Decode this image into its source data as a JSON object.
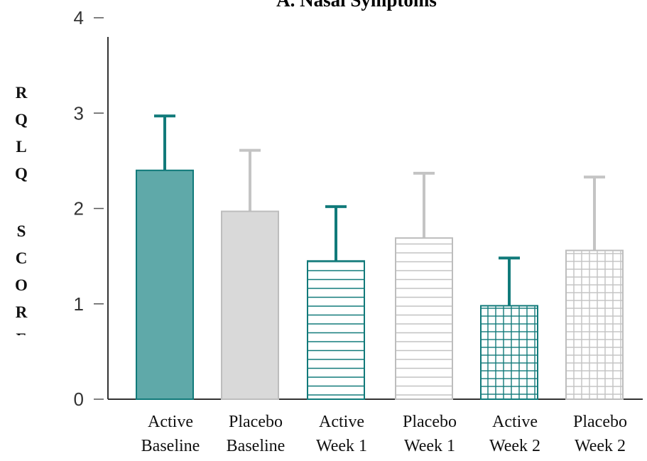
{
  "chart_data": {
    "type": "bar",
    "title": "A. Nasal Symptoms",
    "ylabel": "RQLQ SCORE",
    "xlabel": "",
    "ylim": [
      0,
      4
    ],
    "yticks": [
      "0",
      "1",
      "2",
      "3",
      "4"
    ],
    "categories": [
      [
        "Active",
        "Baseline"
      ],
      [
        "Placebo",
        "Baseline"
      ],
      [
        "Active",
        "Week 1"
      ],
      [
        "Placebo",
        "Week 1"
      ],
      [
        "Active",
        "Week 2"
      ],
      [
        "Placebo",
        "Week 2"
      ]
    ],
    "values": [
      2.4,
      1.97,
      1.45,
      1.69,
      0.98,
      1.56
    ],
    "error_upper": [
      2.97,
      2.61,
      2.02,
      2.37,
      1.48,
      2.33
    ],
    "fills": [
      "solid",
      "solid",
      "horizontal-lines",
      "horizontal-lines",
      "grid",
      "grid"
    ],
    "colors": {
      "active": "#5fa9a9",
      "active_stroke": "#117a7a",
      "placebo": "#d9d9d9",
      "placebo_stroke": "#bdbdbd"
    },
    "groups": [
      "active",
      "placebo",
      "active",
      "placebo",
      "active",
      "placebo"
    ],
    "grid": false,
    "legend": "none"
  }
}
